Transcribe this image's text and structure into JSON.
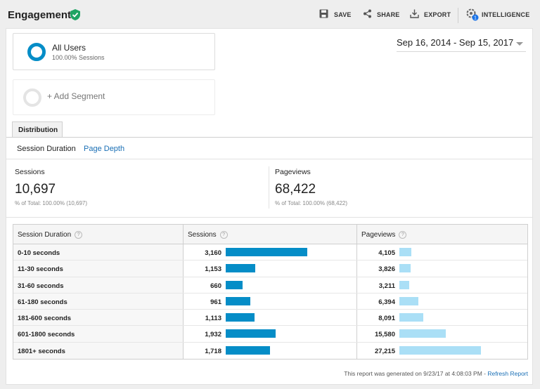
{
  "header": {
    "title": "Engagement",
    "save_label": "SAVE",
    "share_label": "SHARE",
    "export_label": "EXPORT",
    "intelligence_label": "INTELLIGENCE",
    "intelligence_badge": "1",
    "verified_color": "#1fa463"
  },
  "segments": {
    "active": {
      "name": "All Users",
      "subtitle": "100.00% Sessions"
    },
    "add_label": "+ Add Segment"
  },
  "date_range": "Sep 16, 2014 - Sep 15, 2017",
  "tab": {
    "label": "Distribution"
  },
  "subnav": {
    "items": [
      "Session Duration",
      "Page Depth"
    ],
    "selected": "Session Duration"
  },
  "metrics": {
    "sessions": {
      "label": "Sessions",
      "value": "10,697",
      "sub": "% of Total: 100.00% (10,697)"
    },
    "pageviews": {
      "label": "Pageviews",
      "value": "68,422",
      "sub": "% of Total: 100.00% (68,422)"
    }
  },
  "table": {
    "headers": [
      "Session Duration",
      "Sessions",
      "Pageviews"
    ],
    "help_icon": "?",
    "rows": [
      {
        "duration": "0-10 seconds",
        "sessions": "3,160",
        "pageviews": "4,105"
      },
      {
        "duration": "11-30 seconds",
        "sessions": "1,153",
        "pageviews": "3,826"
      },
      {
        "duration": "31-60 seconds",
        "sessions": "660",
        "pageviews": "3,211"
      },
      {
        "duration": "61-180 seconds",
        "sessions": "961",
        "pageviews": "6,394"
      },
      {
        "duration": "181-600 seconds",
        "sessions": "1,113",
        "pageviews": "8,091"
      },
      {
        "duration": "601-1800 seconds",
        "sessions": "1,932",
        "pageviews": "15,580"
      },
      {
        "duration": "1801+ seconds",
        "sessions": "1,718",
        "pageviews": "27,215"
      }
    ],
    "session_values": [
      3160,
      1153,
      660,
      961,
      1113,
      1932,
      1718
    ],
    "pageview_values": [
      4105,
      3826,
      3211,
      6394,
      8091,
      15580,
      27215
    ],
    "colors": {
      "sessions_bar": "#058dc7",
      "pageviews_bar": "#aadff6"
    }
  },
  "footer": {
    "text": "This report was generated on 9/23/17 at 4:08:03 PM - ",
    "refresh_label": "Refresh Report"
  }
}
